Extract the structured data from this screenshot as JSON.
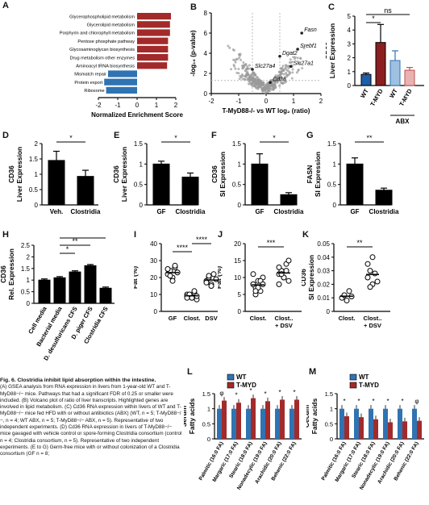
{
  "panel_letters": [
    "A",
    "B",
    "C",
    "D",
    "E",
    "F",
    "G",
    "H",
    "I",
    "J",
    "K",
    "L",
    "M"
  ],
  "colors": {
    "red": "#a32a2a",
    "blue": "#2f73b2",
    "dark_blue": "#1f5ea8",
    "black": "#000000",
    "grey": "#a0a0a0",
    "light_blue": "#9fc0e0",
    "pink": "#e8b2b2",
    "dark_red": "#8b1f1f"
  },
  "chart_data": [
    {
      "id": "A",
      "type": "bar",
      "orientation": "horizontal",
      "categories": [
        "Glycerophospholipid metabolism",
        "Glycerolipid metabolism",
        "Porphyrin and chlorophyll metabolism",
        "Pentose phosphate pathway",
        "Glycosaminoglycan biosynthesis",
        "Drug metabolism other enzymes",
        "Aminoacyl tRNA biosynthesis",
        "Mismatch repair",
        "Protein export",
        "Ribosome"
      ],
      "values": [
        1.75,
        1.7,
        1.7,
        1.6,
        1.6,
        1.6,
        1.55,
        -1.5,
        -1.7,
        -1.6
      ],
      "xlabel": "Normalized Enrichment Score",
      "xlim": [
        -2,
        2
      ],
      "xticks": [
        -2,
        -1,
        0,
        1,
        2
      ]
    },
    {
      "id": "B",
      "type": "scatter",
      "xlabel": "T-MyD88-/- vs WT log₂ (ratio)",
      "ylabel": "-log₁₀ (p-value)",
      "xlim": [
        -2,
        2
      ],
      "ylim": [
        0,
        8
      ],
      "xticks": [
        -2,
        -1,
        0,
        1,
        2
      ],
      "yticks": [
        0,
        2,
        4,
        6,
        8
      ],
      "annotations": [
        "Fasn",
        "Srebf1",
        "Dgat2",
        "Slc27a4",
        "Slc27a1",
        "Cd36"
      ]
    },
    {
      "id": "C",
      "type": "bar",
      "ylabel": "CD36 Liver Expression",
      "ylim": [
        0,
        5
      ],
      "yticks": [
        0,
        1,
        2,
        3,
        4,
        5
      ],
      "categories": [
        "WT",
        "T-MYD",
        "WT",
        "T-MYD"
      ],
      "values": [
        0.8,
        3.1,
        1.8,
        1.1
      ],
      "errors": [
        0.1,
        1.3,
        0.7,
        0.2
      ],
      "group_label": "ABX",
      "sig": [
        "*",
        "ns"
      ]
    },
    {
      "id": "D",
      "type": "bar",
      "ylabel": "CD36 Liver Expression",
      "ylim": [
        0,
        2.0
      ],
      "yticks": [
        0,
        0.5,
        1.0,
        1.5,
        2.0
      ],
      "categories": [
        "Veh.",
        "Clostridia"
      ],
      "values": [
        1.45,
        0.93
      ],
      "errors": [
        0.3,
        0.2
      ],
      "sig": [
        "*"
      ]
    },
    {
      "id": "E",
      "type": "bar",
      "ylabel": "CD36 Liver Expression",
      "ylim": [
        0,
        1.5
      ],
      "yticks": [
        0,
        0.5,
        1.0,
        1.5
      ],
      "categories": [
        "GF",
        "Clostridia"
      ],
      "values": [
        1.0,
        0.68
      ],
      "errors": [
        0.07,
        0.1
      ],
      "sig": [
        "*"
      ]
    },
    {
      "id": "F",
      "type": "bar",
      "ylabel": "CD36 SI Expression",
      "ylim": [
        0,
        1.5
      ],
      "yticks": [
        0,
        0.5,
        1.0,
        1.5
      ],
      "categories": [
        "GF",
        "Clostridia"
      ],
      "values": [
        1.0,
        0.25
      ],
      "errors": [
        0.25,
        0.05
      ],
      "sig": [
        "*"
      ]
    },
    {
      "id": "G",
      "type": "bar",
      "ylabel": "FASN SI Expression",
      "ylim": [
        0,
        1.5
      ],
      "yticks": [
        0,
        0.5,
        1.0,
        1.5
      ],
      "categories": [
        "GF",
        "Clostridia"
      ],
      "values": [
        1.0,
        0.36
      ],
      "errors": [
        0.15,
        0.05
      ],
      "sig": [
        "**"
      ]
    },
    {
      "id": "H",
      "type": "bar",
      "ylabel": "CD36 Rel. Expression",
      "ylim": [
        0,
        2.5
      ],
      "yticks": [
        0,
        0.5,
        1.0,
        1.5,
        2.0,
        2.5
      ],
      "categories": [
        "Cell media",
        "Bacterial media",
        "D. desulfuricans CFS",
        "D. piger CFS",
        "Clostridia CFS"
      ],
      "values": [
        1.0,
        1.1,
        1.35,
        1.62,
        0.65
      ],
      "errors": [
        0.05,
        0.05,
        0.05,
        0.05,
        0.05
      ],
      "sig": [
        "*",
        "**",
        "**"
      ]
    },
    {
      "id": "I",
      "type": "scatter",
      "ylabel": "Fat (%)",
      "ylim": [
        0,
        40
      ],
      "yticks": [
        0,
        10,
        20,
        30,
        40
      ],
      "categories": [
        "GF",
        "Clost.",
        "DSV"
      ],
      "points": [
        [
          22,
          24,
          20,
          26,
          23,
          25,
          21,
          18,
          27,
          23
        ],
        [
          10,
          9,
          8,
          11,
          7,
          9,
          10,
          8,
          12,
          9,
          8
        ],
        [
          18,
          20,
          16,
          22,
          19,
          17,
          21,
          15
        ]
      ],
      "sig": [
        "****",
        "****"
      ]
    },
    {
      "id": "J",
      "type": "scatter",
      "ylabel": "Fat (%)",
      "ylim": [
        0,
        20
      ],
      "yticks": [
        0,
        5,
        10,
        15,
        20
      ],
      "categories": [
        "Clost.",
        "Clost. + DSV"
      ],
      "points": [
        [
          8,
          7,
          9,
          6,
          10,
          8,
          5,
          7,
          9,
          8,
          11,
          6
        ],
        [
          11,
          12,
          10,
          14,
          9,
          13,
          11,
          10,
          12,
          15,
          8,
          11
        ]
      ],
      "sig": [
        "***"
      ]
    },
    {
      "id": "K",
      "type": "scatter",
      "ylabel": "CD36 SI Expression",
      "ylim": [
        0,
        0.05
      ],
      "yticks": [
        0,
        0.01,
        0.02,
        0.03,
        0.04,
        0.05
      ],
      "categories": [
        "Clost.",
        "Clost. + DSV"
      ],
      "points": [
        [
          0.01,
          0.012,
          0.008,
          0.015,
          0.011
        ],
        [
          0.025,
          0.03,
          0.02,
          0.028,
          0.022,
          0.035,
          0.018,
          0.04
        ]
      ],
      "sig": [
        "**"
      ]
    },
    {
      "id": "L",
      "type": "bar",
      "ylabel": "Serum Fatty acids",
      "ylim": [
        0,
        1.5
      ],
      "yticks": [
        0,
        0.5,
        1.0,
        1.5
      ],
      "categories": [
        "Palmitic (16:0 FA)",
        "Margaric (17:0 FA)",
        "Stearic (18:0 FA)",
        "Nonadecylic (19:0 FA)",
        "Arachidic (20:0 FA)",
        "Behenic (22:0 FA)"
      ],
      "series": [
        {
          "name": "WT",
          "values": [
            1.0,
            1.0,
            1.0,
            1.0,
            1.0,
            1.0
          ]
        },
        {
          "name": "T-MYD",
          "values": [
            1.27,
            1.2,
            1.35,
            1.25,
            1.3,
            1.3
          ]
        }
      ],
      "sig": [
        "φ",
        "*",
        "*",
        "*",
        "*",
        "*"
      ]
    },
    {
      "id": "M",
      "type": "bar",
      "ylabel": "Cecum Fatty acids",
      "ylim": [
        0,
        1.5
      ],
      "yticks": [
        0,
        0.5,
        1.0,
        1.5
      ],
      "categories": [
        "Palmitic (16:0 FA)",
        "Margaric (17:0 FA)",
        "Stearic (18:0 FA)",
        "Nonadecylic (19:0 FA)",
        "Arachidic (20:0 FA)",
        "Behenic (22:0 FA)"
      ],
      "series": [
        {
          "name": "WT",
          "values": [
            1.0,
            1.0,
            1.0,
            1.0,
            1.0,
            1.0
          ]
        },
        {
          "name": "T-MYD",
          "values": [
            0.75,
            0.72,
            0.65,
            0.55,
            0.58,
            0.6
          ]
        }
      ],
      "sig": [
        "*",
        "*",
        "*",
        "*",
        "*",
        "φ"
      ]
    }
  ],
  "caption": {
    "title": "Fig. 6. Clostridia inhibit lipid absorption within the intestine.",
    "body": "(A) GSEA analysis from RNA expression in livers from 1-year-old WT and T-MyD88−/− mice. Pathways that had a significant FDR of 0.25 or smaller were included. (B) Volcano plot of ratio of liver transcripts. Highlighted genes are involved in lipid metabolism. (C) Cd36 RNA expression within livers of WT and T-MyD88−/− mice fed HFD with or without antibiotics (ABX) (WT, n = 5; T-MyD88−/−, n = 4; WT ABX, n = 5; T-MyD88−/− ABX, n = 5). Representative of two independent experiments. (D) Cd36 RNA expression in livers of T-MyD88−/− mice gavaged with vehicle control or spore-forming Clostridia consortium (control n = 4; Clostridia consortium, n = 5). Representative of two independent experiments. (E to G) Germ-free mice with or without colonization of a Clostridia consortium (GF n = 8;"
  }
}
